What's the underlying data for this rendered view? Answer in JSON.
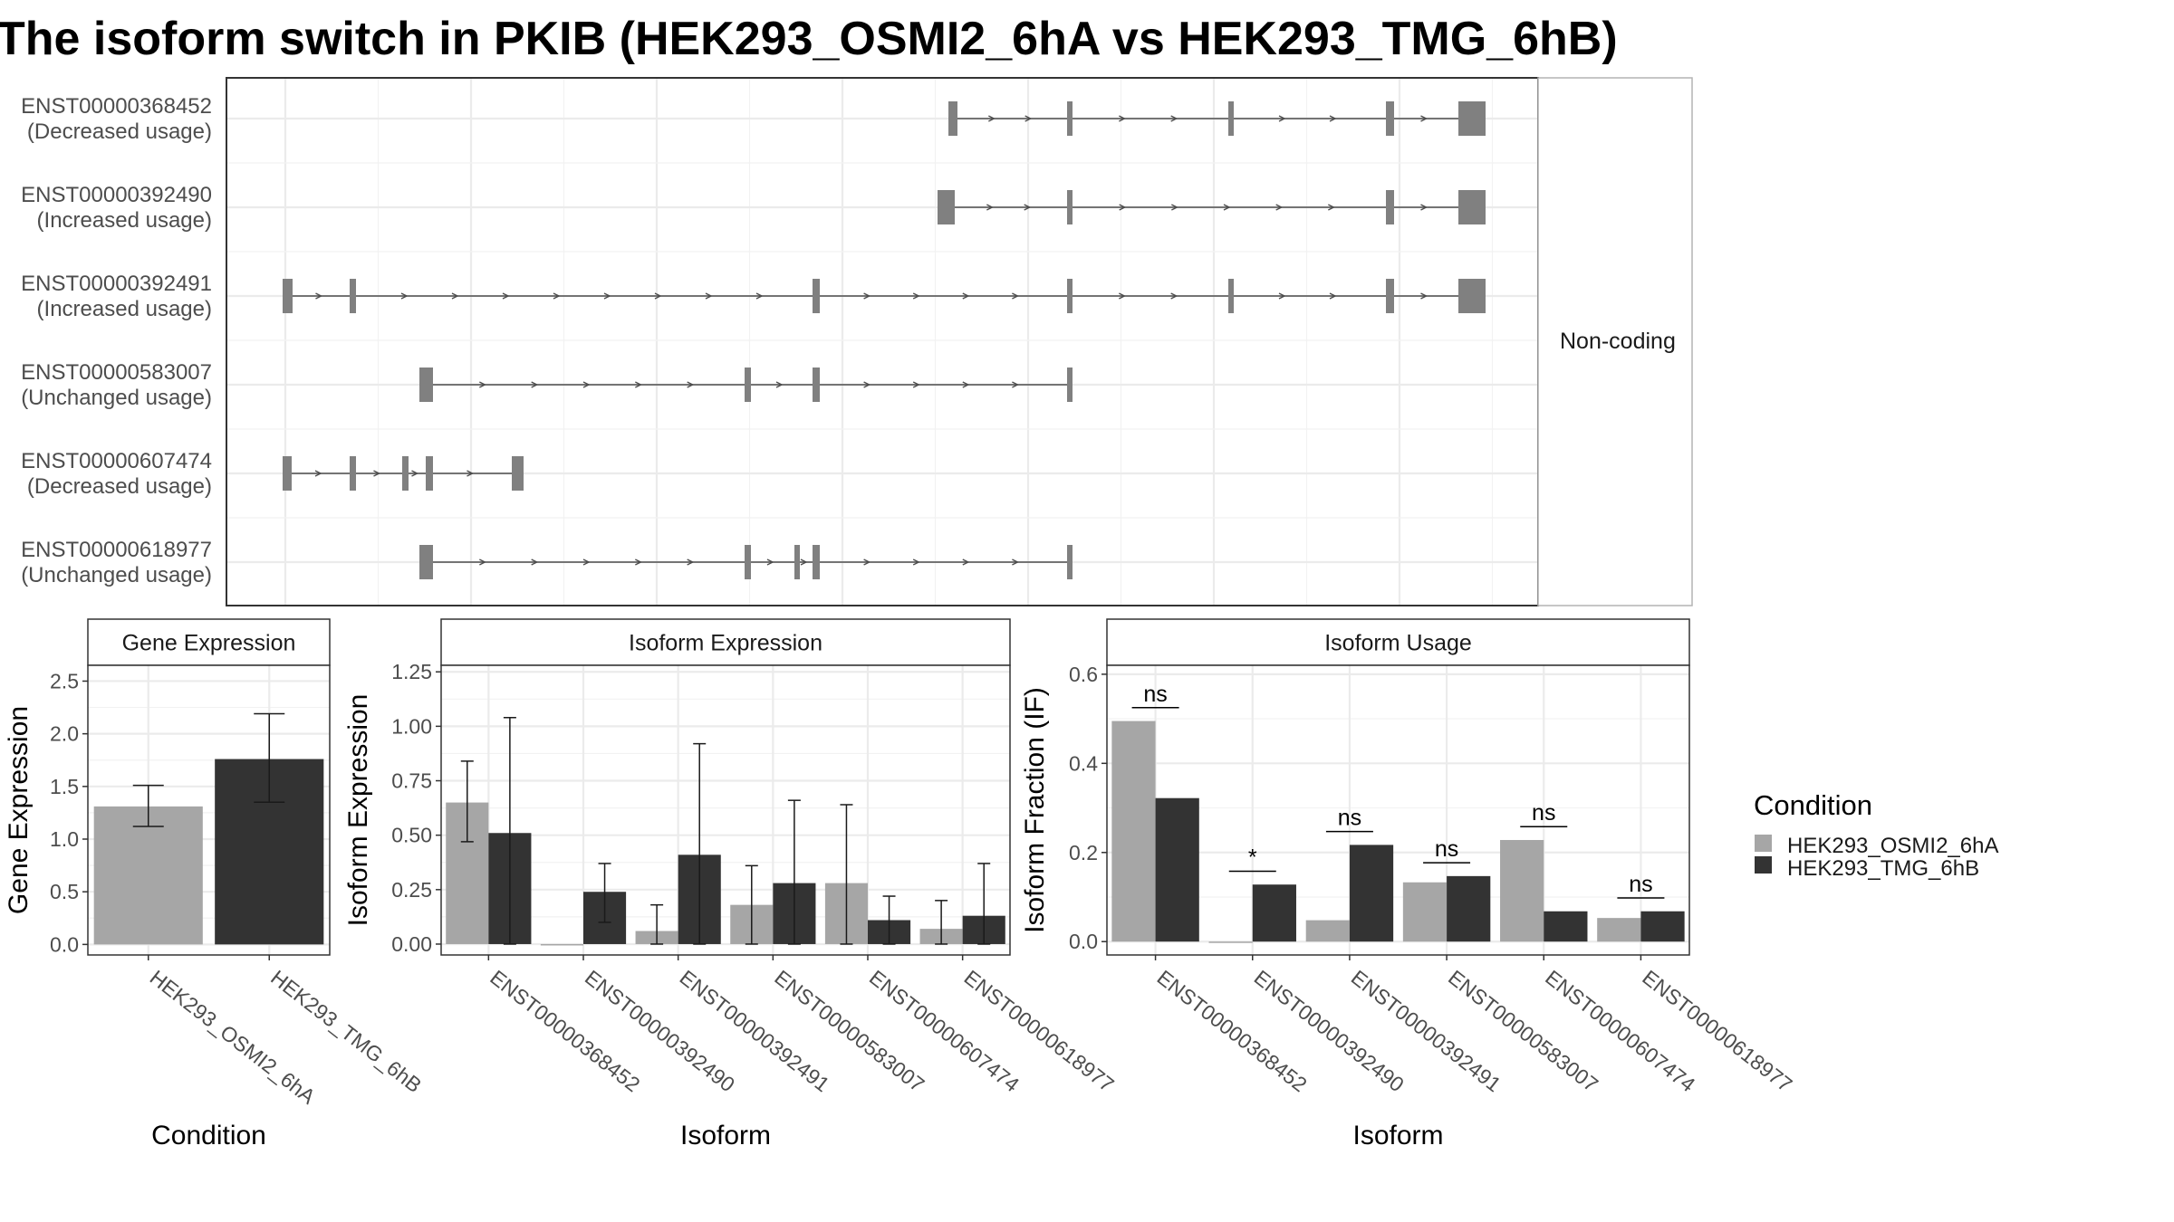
{
  "title": "The isoform switch in PKIB (HEK293_OSMI2_6hA vs HEK293_TMG_6hB)",
  "colors": {
    "cond1": "#a6a6a6",
    "cond2": "#333333",
    "exon": "#808080",
    "grid": "#ebebeb"
  },
  "chart_data": [
    {
      "type": "gene_structure",
      "side_label": "Non-coding",
      "isoforms": [
        {
          "id": "ENST00000368452",
          "usage": "(Decreased usage)"
        },
        {
          "id": "ENST00000392490",
          "usage": "(Increased usage)"
        },
        {
          "id": "ENST00000392491",
          "usage": "(Increased usage)"
        },
        {
          "id": "ENST00000583007",
          "usage": "(Unchanged usage)"
        },
        {
          "id": "ENST00000607474",
          "usage": "(Decreased usage)"
        },
        {
          "id": "ENST00000618977",
          "usage": "(Unchanged usage)"
        }
      ]
    },
    {
      "type": "bar",
      "panel": "Gene Expression",
      "xlabel": "Condition",
      "ylabel": "Gene Expression",
      "ylim": [
        -0.1,
        2.65
      ],
      "yticks": [
        "0.0",
        "0.5",
        "1.0",
        "1.5",
        "2.0",
        "2.5"
      ],
      "categories": [
        "HEK293_OSMI2_6hA",
        "HEK293_TMG_6hB"
      ],
      "values": [
        1.31,
        1.76
      ],
      "errors": [
        [
          1.12,
          1.51
        ],
        [
          1.35,
          2.19
        ]
      ]
    },
    {
      "type": "bar",
      "panel": "Isoform Expression",
      "xlabel": "Isoform",
      "ylabel": "Isoform Expression",
      "ylim": [
        -0.05,
        1.28
      ],
      "yticks": [
        "0.00",
        "0.25",
        "0.50",
        "0.75",
        "1.00",
        "1.25"
      ],
      "categories": [
        "ENST00000368452",
        "ENST00000392490",
        "ENST00000392491",
        "ENST00000583007",
        "ENST00000607474",
        "ENST00000618977"
      ],
      "series": [
        {
          "name": "HEK293_OSMI2_6hA",
          "values": [
            0.65,
            0.0,
            0.06,
            0.18,
            0.28,
            0.07
          ],
          "errors": [
            [
              0.47,
              0.84
            ],
            [
              0.0,
              0.0
            ],
            [
              0.0,
              0.18
            ],
            [
              0.0,
              0.36
            ],
            [
              0.0,
              0.64
            ],
            [
              0.0,
              0.2
            ]
          ]
        },
        {
          "name": "HEK293_TMG_6hB",
          "values": [
            0.51,
            0.24,
            0.41,
            0.28,
            0.11,
            0.13
          ],
          "errors": [
            [
              0.0,
              1.04
            ],
            [
              0.1,
              0.37
            ],
            [
              0.0,
              0.92
            ],
            [
              0.0,
              0.66
            ],
            [
              0.0,
              0.22
            ],
            [
              0.0,
              0.37
            ]
          ]
        }
      ]
    },
    {
      "type": "bar",
      "panel": "Isoform Usage",
      "xlabel": "Isoform",
      "ylabel": "Isoform Fraction (IF)",
      "ylim": [
        -0.03,
        0.62
      ],
      "yticks": [
        "0.0",
        "0.2",
        "0.4",
        "0.6"
      ],
      "categories": [
        "ENST00000368452",
        "ENST00000392490",
        "ENST00000392491",
        "ENST00000583007",
        "ENST00000607474",
        "ENST00000618977"
      ],
      "series": [
        {
          "name": "HEK293_OSMI2_6hA",
          "values": [
            0.495,
            0.0,
            0.048,
            0.133,
            0.228,
            0.053
          ]
        },
        {
          "name": "HEK293_TMG_6hB",
          "values": [
            0.322,
            0.128,
            0.217,
            0.147,
            0.068,
            0.068
          ]
        }
      ],
      "significance": [
        "ns",
        "*",
        "ns",
        "ns",
        "ns",
        "ns"
      ]
    }
  ],
  "legend": {
    "title": "Condition",
    "items": [
      "HEK293_OSMI2_6hA",
      "HEK293_TMG_6hB"
    ]
  }
}
